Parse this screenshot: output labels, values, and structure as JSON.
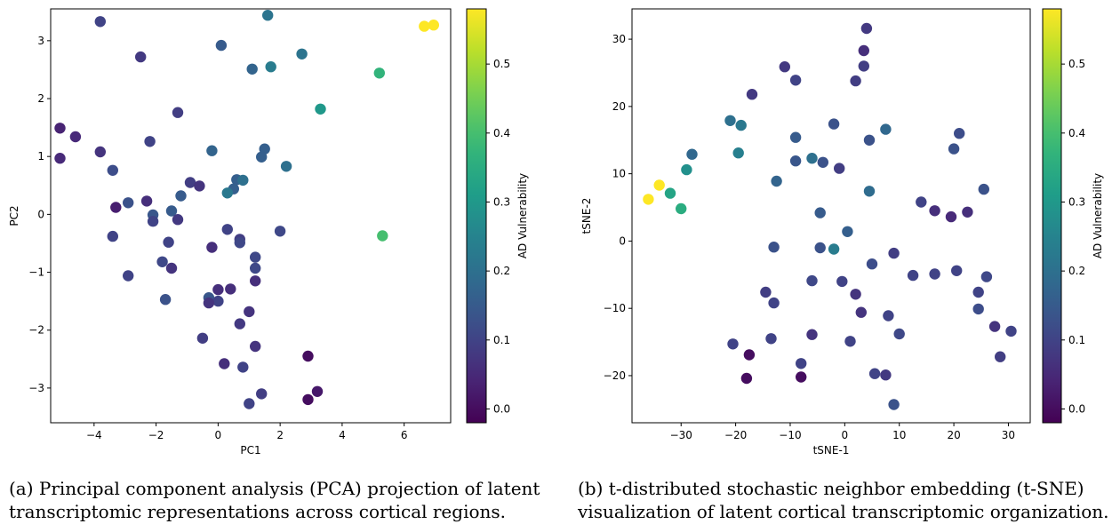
{
  "colors": {
    "low": "#440154",
    "high": "#fde725"
  },
  "chart_data": [
    {
      "type": "scatter",
      "id": "pca",
      "xlabel": "PC1",
      "ylabel": "PC2",
      "xlim": [
        -5.4,
        7.5
      ],
      "ylim": [
        -3.6,
        3.55
      ],
      "xticks": [
        -4,
        -2,
        0,
        2,
        4,
        6
      ],
      "yticks": [
        -3,
        -2,
        -1,
        0,
        1,
        2,
        3
      ],
      "colorbar_label": "AD Vulnerability",
      "clim": [
        -0.02,
        0.58
      ],
      "colorbar_ticks": [
        0.0,
        0.1,
        0.2,
        0.3,
        0.4,
        0.5
      ],
      "grid": false,
      "points": [
        {
          "x": 6.65,
          "y": 3.25,
          "c": 0.58
        },
        {
          "x": 6.95,
          "y": 3.27,
          "c": 0.58
        },
        {
          "x": 5.2,
          "y": 2.44,
          "c": 0.37
        },
        {
          "x": 5.3,
          "y": -0.37,
          "c": 0.4
        },
        {
          "x": 3.3,
          "y": 1.82,
          "c": 0.3
        },
        {
          "x": 1.6,
          "y": 3.44,
          "c": 0.21
        },
        {
          "x": 2.7,
          "y": 2.77,
          "c": 0.21
        },
        {
          "x": 1.7,
          "y": 2.55,
          "c": 0.23
        },
        {
          "x": 1.1,
          "y": 2.51,
          "c": 0.17
        },
        {
          "x": 0.1,
          "y": 2.92,
          "c": 0.15
        },
        {
          "x": -3.8,
          "y": 3.33,
          "c": 0.1
        },
        {
          "x": -2.5,
          "y": 2.72,
          "c": 0.08
        },
        {
          "x": -1.3,
          "y": 1.76,
          "c": 0.09
        },
        {
          "x": -2.2,
          "y": 1.26,
          "c": 0.1
        },
        {
          "x": -5.1,
          "y": 1.49,
          "c": 0.04
        },
        {
          "x": -4.6,
          "y": 1.34,
          "c": 0.05
        },
        {
          "x": -5.1,
          "y": 0.97,
          "c": 0.05
        },
        {
          "x": -3.8,
          "y": 1.08,
          "c": 0.07
        },
        {
          "x": -3.4,
          "y": 0.76,
          "c": 0.12
        },
        {
          "x": -0.2,
          "y": 1.1,
          "c": 0.17
        },
        {
          "x": 1.5,
          "y": 1.13,
          "c": 0.16
        },
        {
          "x": 1.4,
          "y": 0.99,
          "c": 0.16
        },
        {
          "x": 2.2,
          "y": 0.83,
          "c": 0.2
        },
        {
          "x": 0.6,
          "y": 0.6,
          "c": 0.16
        },
        {
          "x": 0.8,
          "y": 0.59,
          "c": 0.2
        },
        {
          "x": 0.5,
          "y": 0.44,
          "c": 0.16
        },
        {
          "x": 0.3,
          "y": 0.37,
          "c": 0.22
        },
        {
          "x": -0.9,
          "y": 0.55,
          "c": 0.09
        },
        {
          "x": -0.6,
          "y": 0.49,
          "c": 0.07
        },
        {
          "x": -1.2,
          "y": 0.32,
          "c": 0.15
        },
        {
          "x": -2.9,
          "y": 0.2,
          "c": 0.13
        },
        {
          "x": -3.3,
          "y": 0.12,
          "c": 0.03
        },
        {
          "x": -2.3,
          "y": 0.23,
          "c": 0.06
        },
        {
          "x": -2.1,
          "y": -0.01,
          "c": 0.14
        },
        {
          "x": -2.1,
          "y": -0.12,
          "c": 0.1
        },
        {
          "x": -1.5,
          "y": 0.06,
          "c": 0.15
        },
        {
          "x": -1.3,
          "y": -0.09,
          "c": 0.08
        },
        {
          "x": -3.4,
          "y": -0.38,
          "c": 0.1
        },
        {
          "x": -1.6,
          "y": -0.48,
          "c": 0.1
        },
        {
          "x": -1.8,
          "y": -0.82,
          "c": 0.11
        },
        {
          "x": -1.5,
          "y": -0.93,
          "c": 0.07
        },
        {
          "x": -2.9,
          "y": -1.06,
          "c": 0.1
        },
        {
          "x": -1.7,
          "y": -1.47,
          "c": 0.13
        },
        {
          "x": 2.0,
          "y": -0.29,
          "c": 0.11
        },
        {
          "x": 0.3,
          "y": -0.26,
          "c": 0.1
        },
        {
          "x": 0.7,
          "y": -0.43,
          "c": 0.09
        },
        {
          "x": 0.7,
          "y": -0.49,
          "c": 0.11
        },
        {
          "x": -0.2,
          "y": -0.57,
          "c": 0.06
        },
        {
          "x": 1.2,
          "y": -0.74,
          "c": 0.11
        },
        {
          "x": 1.2,
          "y": -0.93,
          "c": 0.11
        },
        {
          "x": 1.2,
          "y": -1.15,
          "c": 0.06
        },
        {
          "x": 0.0,
          "y": -1.3,
          "c": 0.06
        },
        {
          "x": 0.4,
          "y": -1.29,
          "c": 0.06
        },
        {
          "x": -0.3,
          "y": -1.44,
          "c": 0.14
        },
        {
          "x": 0.0,
          "y": -1.5,
          "c": 0.1
        },
        {
          "x": -0.3,
          "y": -1.53,
          "c": 0.07
        },
        {
          "x": 1.0,
          "y": -1.68,
          "c": 0.07
        },
        {
          "x": 0.7,
          "y": -1.89,
          "c": 0.08
        },
        {
          "x": -0.5,
          "y": -2.14,
          "c": 0.09
        },
        {
          "x": 1.2,
          "y": -2.28,
          "c": 0.07
        },
        {
          "x": 0.2,
          "y": -2.58,
          "c": 0.06
        },
        {
          "x": 0.8,
          "y": -2.64,
          "c": 0.1
        },
        {
          "x": 1.4,
          "y": -3.1,
          "c": 0.09
        },
        {
          "x": 1.0,
          "y": -3.27,
          "c": 0.1
        },
        {
          "x": 2.9,
          "y": -2.45,
          "c": 0.0
        },
        {
          "x": 3.2,
          "y": -3.06,
          "c": 0.02
        },
        {
          "x": 2.9,
          "y": -3.2,
          "c": 0.0
        }
      ]
    },
    {
      "type": "scatter",
      "id": "tsne",
      "xlabel": "tSNE-1",
      "ylabel": "tSNE-2",
      "xlim": [
        -39,
        34
      ],
      "ylim": [
        -27,
        34.5
      ],
      "xticks": [
        -30,
        -20,
        -10,
        0,
        10,
        20,
        30
      ],
      "yticks": [
        -20,
        -10,
        0,
        10,
        20,
        30
      ],
      "colorbar_label": "AD Vulnerability",
      "clim": [
        -0.02,
        0.58
      ],
      "colorbar_ticks": [
        0.0,
        0.1,
        0.2,
        0.3,
        0.4,
        0.5
      ],
      "grid": false,
      "points": [
        {
          "x": -36,
          "y": 6.2,
          "c": 0.58
        },
        {
          "x": -34,
          "y": 8.3,
          "c": 0.58
        },
        {
          "x": -32,
          "y": 7.1,
          "c": 0.33
        },
        {
          "x": -30,
          "y": 4.8,
          "c": 0.35
        },
        {
          "x": -29,
          "y": 10.6,
          "c": 0.28
        },
        {
          "x": -28,
          "y": 12.9,
          "c": 0.18
        },
        {
          "x": -21,
          "y": 17.9,
          "c": 0.2
        },
        {
          "x": -19,
          "y": 17.2,
          "c": 0.22
        },
        {
          "x": -19.5,
          "y": 13.1,
          "c": 0.24
        },
        {
          "x": -17,
          "y": 21.8,
          "c": 0.08
        },
        {
          "x": -11,
          "y": 25.9,
          "c": 0.08
        },
        {
          "x": -9,
          "y": 23.9,
          "c": 0.1
        },
        {
          "x": -9,
          "y": 15.4,
          "c": 0.15
        },
        {
          "x": -9,
          "y": 11.9,
          "c": 0.14
        },
        {
          "x": -6,
          "y": 12.3,
          "c": 0.2
        },
        {
          "x": -4,
          "y": 11.7,
          "c": 0.13
        },
        {
          "x": -12.5,
          "y": 8.9,
          "c": 0.17
        },
        {
          "x": -2,
          "y": 17.4,
          "c": 0.13
        },
        {
          "x": -1,
          "y": 10.8,
          "c": 0.09
        },
        {
          "x": 2,
          "y": 23.8,
          "c": 0.09
        },
        {
          "x": 3.5,
          "y": 28.3,
          "c": 0.06
        },
        {
          "x": 3.5,
          "y": 26.0,
          "c": 0.09
        },
        {
          "x": 4,
          "y": 31.6,
          "c": 0.08
        },
        {
          "x": 4.5,
          "y": 15.0,
          "c": 0.13
        },
        {
          "x": 7.5,
          "y": 16.6,
          "c": 0.18
        },
        {
          "x": 4.5,
          "y": 7.4,
          "c": 0.19
        },
        {
          "x": -4.5,
          "y": 4.2,
          "c": 0.15
        },
        {
          "x": 0.5,
          "y": 1.4,
          "c": 0.16
        },
        {
          "x": -2,
          "y": -1.2,
          "c": 0.23
        },
        {
          "x": -4.5,
          "y": -1.0,
          "c": 0.13
        },
        {
          "x": -13,
          "y": -0.9,
          "c": 0.13
        },
        {
          "x": 5,
          "y": -3.4,
          "c": 0.12
        },
        {
          "x": 9,
          "y": -1.8,
          "c": 0.09
        },
        {
          "x": -6,
          "y": -5.9,
          "c": 0.11
        },
        {
          "x": -0.5,
          "y": -6.0,
          "c": 0.1
        },
        {
          "x": -14.5,
          "y": -7.6,
          "c": 0.09
        },
        {
          "x": -13,
          "y": -9.2,
          "c": 0.1
        },
        {
          "x": 2,
          "y": -7.9,
          "c": 0.07
        },
        {
          "x": 3,
          "y": -10.6,
          "c": 0.07
        },
        {
          "x": 8,
          "y": -11.1,
          "c": 0.1
        },
        {
          "x": -13.5,
          "y": -14.5,
          "c": 0.1
        },
        {
          "x": -6,
          "y": -13.9,
          "c": 0.07
        },
        {
          "x": -20.5,
          "y": -15.3,
          "c": 0.1
        },
        {
          "x": 1,
          "y": -14.9,
          "c": 0.1
        },
        {
          "x": 10,
          "y": -13.8,
          "c": 0.11
        },
        {
          "x": -17.5,
          "y": -16.9,
          "c": 0.0
        },
        {
          "x": -18,
          "y": -20.4,
          "c": 0.0
        },
        {
          "x": -8,
          "y": -18.2,
          "c": 0.1
        },
        {
          "x": -8,
          "y": -20.2,
          "c": 0.0
        },
        {
          "x": 5.5,
          "y": -19.7,
          "c": 0.1
        },
        {
          "x": 7.5,
          "y": -19.9,
          "c": 0.08
        },
        {
          "x": 9,
          "y": -24.3,
          "c": 0.13
        },
        {
          "x": 14,
          "y": 5.8,
          "c": 0.1
        },
        {
          "x": 16.5,
          "y": 4.5,
          "c": 0.06
        },
        {
          "x": 22.5,
          "y": 4.3,
          "c": 0.06
        },
        {
          "x": 19.5,
          "y": 3.6,
          "c": 0.05
        },
        {
          "x": 20,
          "y": 13.7,
          "c": 0.13
        },
        {
          "x": 21,
          "y": 16.0,
          "c": 0.12
        },
        {
          "x": 25.5,
          "y": 7.7,
          "c": 0.13
        },
        {
          "x": 12.5,
          "y": -5.1,
          "c": 0.1
        },
        {
          "x": 16.5,
          "y": -4.9,
          "c": 0.1
        },
        {
          "x": 20.5,
          "y": -4.4,
          "c": 0.1
        },
        {
          "x": 26,
          "y": -5.3,
          "c": 0.11
        },
        {
          "x": 24.5,
          "y": -7.6,
          "c": 0.1
        },
        {
          "x": 24.5,
          "y": -10.1,
          "c": 0.12
        },
        {
          "x": 27.5,
          "y": -12.7,
          "c": 0.07
        },
        {
          "x": 30.5,
          "y": -13.4,
          "c": 0.1
        },
        {
          "x": 28.5,
          "y": -17.2,
          "c": 0.09
        }
      ]
    }
  ],
  "captions": [
    {
      "label": "(a)",
      "text": "Principal component analysis (PCA) projection of latent transcriptomic representations across cortical regions."
    },
    {
      "label": "(b)",
      "text": "t-distributed stochastic neighbor embedding (t-SNE) visualization of latent cortical transcriptomic organization."
    }
  ]
}
